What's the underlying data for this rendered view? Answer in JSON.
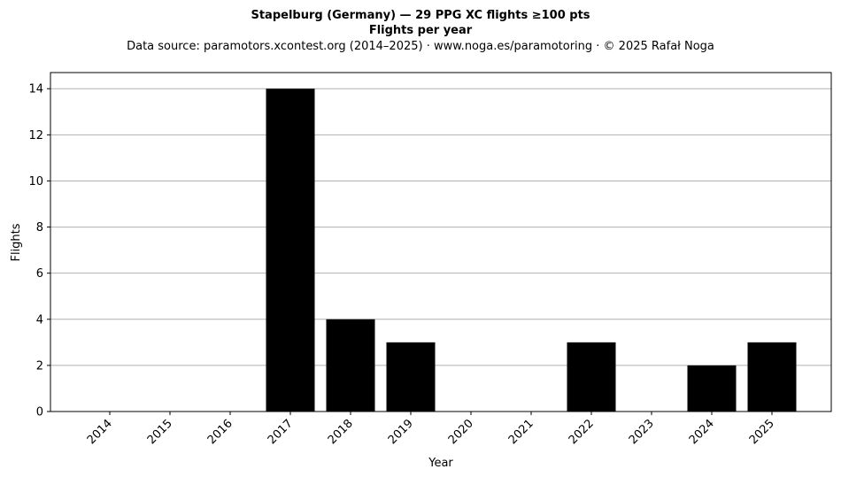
{
  "chart_data": {
    "type": "bar",
    "title": "Stapelburg (Germany)  —  29 PPG XC flights ≥100 pts",
    "subtitle": "Flights per year",
    "source_line": "Data source: paramotors.xcontest.org (2014–2025)  ·  www.noga.es/paramotoring  ·  © 2025 Rafał Noga",
    "xlabel": "Year",
    "ylabel": "Flights",
    "categories": [
      "2014",
      "2015",
      "2016",
      "2017",
      "2018",
      "2019",
      "2020",
      "2021",
      "2022",
      "2023",
      "2024",
      "2025"
    ],
    "values": [
      0,
      0,
      0,
      14,
      4,
      3,
      0,
      0,
      3,
      0,
      2,
      3
    ],
    "ylim": [
      0,
      14.7
    ],
    "yticks": [
      0,
      2,
      4,
      6,
      8,
      10,
      12,
      14
    ],
    "grid": "horizontal",
    "bar_color": "#000000",
    "grid_color": "#b0b0b0"
  }
}
